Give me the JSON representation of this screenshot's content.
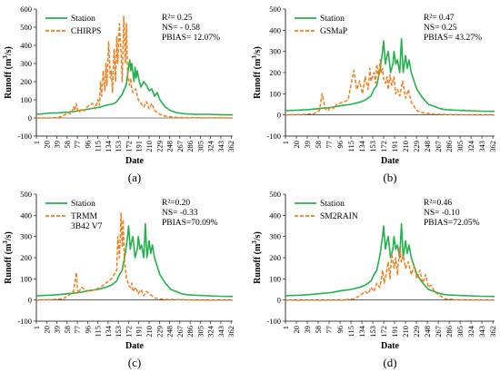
{
  "figure": {
    "x_ticks": [
      "1",
      "20",
      "39",
      "58",
      "77",
      "96",
      "115",
      "134",
      "153",
      "172",
      "191",
      "210",
      "229",
      "248",
      "267",
      "286",
      "305",
      "324",
      "343",
      "362"
    ],
    "xlabel": "Date",
    "ylabel_main": "Runoff (m",
    "ylabel_sup": "3",
    "ylabel_tail": "/s)",
    "observed_name": "Station",
    "colors": {
      "observed": "#22b14c",
      "estimate": "#f07e1a",
      "zero_line": "#000000"
    }
  },
  "chart_data": [
    {
      "panel": "(a)",
      "type": "line",
      "title": "",
      "xlabel": "Date",
      "ylabel": "Runoff (m3/s)",
      "xlim": [
        1,
        365
      ],
      "ylim": [
        -100,
        600
      ],
      "y_ticks": [
        -100,
        0,
        100,
        200,
        300,
        400,
        500,
        600
      ],
      "x_ticks": [
        1,
        20,
        39,
        58,
        77,
        96,
        115,
        134,
        153,
        172,
        191,
        210,
        229,
        248,
        267,
        286,
        305,
        324,
        343,
        362
      ],
      "legend_position": "top-left",
      "stats_lines": [
        "R²= 0.25",
        "NS= - 0.58",
        "PBIAS= 12.07%"
      ],
      "series": [
        {
          "name": "Station",
          "style": "solid",
          "x": [
            1,
            10,
            20,
            30,
            40,
            50,
            60,
            70,
            80,
            90,
            100,
            110,
            120,
            130,
            140,
            145,
            150,
            155,
            160,
            163,
            166,
            168,
            170,
            172,
            174,
            176,
            178,
            180,
            182,
            184,
            186,
            188,
            190,
            192,
            195,
            200,
            205,
            210,
            215,
            220,
            225,
            230,
            240,
            250,
            260,
            270,
            280,
            300,
            320,
            340,
            365
          ],
          "values": [
            20,
            22,
            25,
            27,
            28,
            30,
            32,
            35,
            40,
            45,
            50,
            55,
            60,
            70,
            75,
            80,
            90,
            110,
            130,
            150,
            170,
            190,
            240,
            280,
            320,
            260,
            300,
            250,
            200,
            280,
            220,
            260,
            230,
            200,
            170,
            200,
            180,
            150,
            160,
            120,
            140,
            100,
            60,
            40,
            30,
            25,
            22,
            20,
            20,
            18,
            17
          ]
        },
        {
          "name": "CHIRPS",
          "style": "dashed",
          "x": [
            1,
            20,
            40,
            50,
            60,
            65,
            70,
            72,
            75,
            78,
            80,
            85,
            90,
            95,
            100,
            105,
            110,
            115,
            118,
            120,
            122,
            125,
            128,
            130,
            132,
            135,
            138,
            140,
            142,
            145,
            148,
            150,
            152,
            155,
            158,
            160,
            163,
            166,
            168,
            170,
            172,
            174,
            176,
            178,
            180,
            182,
            185,
            188,
            190,
            195,
            200,
            205,
            210,
            215,
            220,
            225,
            230,
            240,
            260,
            280,
            300,
            365
          ],
          "values": [
            0,
            0,
            2,
            10,
            30,
            20,
            60,
            40,
            80,
            40,
            30,
            50,
            40,
            60,
            70,
            80,
            50,
            100,
            70,
            200,
            120,
            260,
            150,
            300,
            180,
            420,
            220,
            260,
            140,
            380,
            200,
            450,
            300,
            520,
            350,
            200,
            560,
            300,
            520,
            250,
            200,
            180,
            220,
            160,
            140,
            150,
            160,
            120,
            100,
            80,
            60,
            90,
            50,
            80,
            40,
            30,
            20,
            10,
            3,
            2,
            1,
            0
          ]
        }
      ]
    },
    {
      "panel": "(b)",
      "type": "line",
      "title": "",
      "xlabel": "Date",
      "ylabel": "Runoff (m3/s)",
      "xlim": [
        1,
        365
      ],
      "ylim": [
        -100,
        500
      ],
      "y_ticks": [
        -100,
        0,
        100,
        200,
        300,
        400,
        500
      ],
      "x_ticks": [
        1,
        20,
        39,
        58,
        77,
        96,
        115,
        134,
        153,
        172,
        191,
        210,
        229,
        248,
        267,
        286,
        305,
        324,
        343,
        362
      ],
      "legend_position": "top-left",
      "stats_lines": [
        "R²= 0.47",
        "NS= 0.25",
        "PBIAS= 43.27%"
      ],
      "series": [
        {
          "name": "Station",
          "style": "solid",
          "x": [
            1,
            20,
            40,
            60,
            80,
            100,
            115,
            130,
            140,
            150,
            155,
            160,
            163,
            166,
            168,
            170,
            172,
            175,
            178,
            180,
            184,
            188,
            190,
            193,
            196,
            200,
            203,
            206,
            210,
            213,
            216,
            220,
            225,
            230,
            240,
            250,
            260,
            270,
            280,
            300,
            320,
            340,
            365
          ],
          "values": [
            20,
            22,
            25,
            30,
            35,
            45,
            50,
            60,
            70,
            90,
            120,
            140,
            180,
            220,
            260,
            300,
            350,
            240,
            280,
            300,
            200,
            240,
            300,
            240,
            260,
            200,
            360,
            200,
            280,
            220,
            260,
            200,
            160,
            120,
            80,
            50,
            40,
            30,
            25,
            22,
            20,
            18,
            17
          ]
        },
        {
          "name": "GSMaP",
          "style": "dashed",
          "x": [
            1,
            30,
            50,
            60,
            65,
            70,
            75,
            80,
            85,
            90,
            100,
            110,
            115,
            120,
            125,
            130,
            135,
            140,
            145,
            148,
            150,
            155,
            158,
            160,
            163,
            166,
            168,
            170,
            172,
            175,
            178,
            180,
            183,
            186,
            190,
            193,
            196,
            200,
            205,
            210,
            215,
            220,
            225,
            230,
            240,
            260,
            280,
            300,
            365
          ],
          "values": [
            0,
            2,
            5,
            20,
            100,
            30,
            20,
            40,
            30,
            50,
            60,
            70,
            140,
            210,
            120,
            160,
            100,
            180,
            120,
            220,
            160,
            200,
            150,
            240,
            180,
            260,
            200,
            220,
            170,
            150,
            180,
            120,
            190,
            140,
            180,
            100,
            120,
            90,
            160,
            80,
            120,
            60,
            40,
            20,
            10,
            3,
            2,
            1,
            0
          ]
        }
      ]
    },
    {
      "panel": "(c)",
      "type": "line",
      "title": "",
      "xlabel": "Date",
      "ylabel": "Runoff (m3/s)",
      "xlim": [
        1,
        365
      ],
      "ylim": [
        -100,
        500
      ],
      "y_ticks": [
        -100,
        0,
        100,
        200,
        300,
        400,
        500
      ],
      "x_ticks": [
        1,
        20,
        39,
        58,
        77,
        96,
        115,
        134,
        153,
        172,
        191,
        210,
        229,
        248,
        267,
        286,
        305,
        324,
        343,
        362
      ],
      "legend_position": "top-left",
      "stats_lines": [
        "R²=0.20",
        "NS= -0.33",
        "PBIAS=70.09%"
      ],
      "series": [
        {
          "name": "Station",
          "style": "solid",
          "x": [
            1,
            20,
            40,
            60,
            80,
            100,
            115,
            130,
            140,
            150,
            155,
            160,
            163,
            166,
            168,
            170,
            172,
            175,
            178,
            180,
            184,
            188,
            190,
            193,
            196,
            200,
            203,
            206,
            210,
            213,
            216,
            220,
            225,
            230,
            240,
            250,
            260,
            270,
            280,
            300,
            320,
            340,
            365
          ],
          "values": [
            20,
            22,
            25,
            30,
            35,
            45,
            50,
            60,
            70,
            90,
            120,
            140,
            180,
            220,
            260,
            300,
            350,
            240,
            280,
            300,
            200,
            240,
            300,
            240,
            260,
            200,
            360,
            200,
            280,
            220,
            260,
            200,
            160,
            120,
            80,
            50,
            40,
            30,
            25,
            22,
            20,
            18,
            17
          ]
        },
        {
          "name": "TRMM 3B42 V7",
          "style": "dashed",
          "x": [
            1,
            30,
            50,
            60,
            70,
            75,
            78,
            80,
            85,
            90,
            100,
            110,
            120,
            130,
            140,
            145,
            150,
            152,
            155,
            158,
            160,
            162,
            164,
            166,
            168,
            170,
            172,
            175,
            178,
            180,
            185,
            190,
            195,
            200,
            205,
            210,
            215,
            220,
            230,
            240,
            260,
            280,
            300,
            365
          ],
          "values": [
            0,
            2,
            5,
            20,
            40,
            130,
            30,
            40,
            60,
            50,
            40,
            50,
            60,
            80,
            100,
            120,
            140,
            300,
            200,
            410,
            250,
            380,
            200,
            150,
            100,
            90,
            70,
            60,
            80,
            40,
            60,
            30,
            50,
            20,
            40,
            30,
            20,
            10,
            5,
            3,
            2,
            1,
            0,
            0
          ]
        }
      ]
    },
    {
      "panel": "(d)",
      "type": "line",
      "title": "",
      "xlabel": "Date",
      "ylabel": "Runoff (m3/s)",
      "xlim": [
        1,
        365
      ],
      "ylim": [
        -100,
        500
      ],
      "y_ticks": [
        -100,
        0,
        100,
        200,
        300,
        400,
        500
      ],
      "x_ticks": [
        1,
        20,
        39,
        58,
        77,
        96,
        115,
        134,
        153,
        172,
        191,
        210,
        229,
        248,
        267,
        286,
        305,
        324,
        343,
        362
      ],
      "legend_position": "top-left",
      "stats_lines": [
        "R²=0.46",
        "NS= -0.10",
        "PBIAS=72.05%"
      ],
      "series": [
        {
          "name": "Station",
          "style": "solid",
          "x": [
            1,
            20,
            40,
            60,
            80,
            100,
            115,
            130,
            140,
            150,
            155,
            160,
            163,
            166,
            168,
            170,
            172,
            175,
            178,
            180,
            184,
            188,
            190,
            193,
            196,
            200,
            203,
            206,
            210,
            213,
            216,
            220,
            225,
            230,
            240,
            250,
            260,
            270,
            280,
            300,
            320,
            340,
            365
          ],
          "values": [
            20,
            22,
            25,
            30,
            35,
            45,
            50,
            60,
            70,
            90,
            120,
            140,
            180,
            220,
            260,
            300,
            350,
            240,
            280,
            300,
            200,
            240,
            300,
            240,
            260,
            200,
            360,
            200,
            280,
            220,
            260,
            200,
            160,
            120,
            80,
            50,
            40,
            30,
            25,
            22,
            20,
            18,
            17
          ]
        },
        {
          "name": "SM2RAIN",
          "style": "dashed",
          "x": [
            1,
            60,
            100,
            120,
            130,
            140,
            145,
            150,
            155,
            160,
            165,
            168,
            170,
            173,
            176,
            180,
            183,
            186,
            190,
            193,
            196,
            200,
            203,
            206,
            210,
            215,
            220,
            225,
            230,
            235,
            240,
            245,
            250,
            255,
            260,
            265,
            270,
            280,
            300,
            365
          ],
          "values": [
            0,
            0,
            0,
            5,
            20,
            40,
            30,
            60,
            40,
            80,
            60,
            100,
            140,
            80,
            120,
            180,
            100,
            220,
            150,
            200,
            120,
            250,
            180,
            210,
            150,
            180,
            120,
            160,
            100,
            140,
            80,
            120,
            60,
            70,
            40,
            30,
            20,
            5,
            1,
            0
          ]
        }
      ]
    }
  ]
}
